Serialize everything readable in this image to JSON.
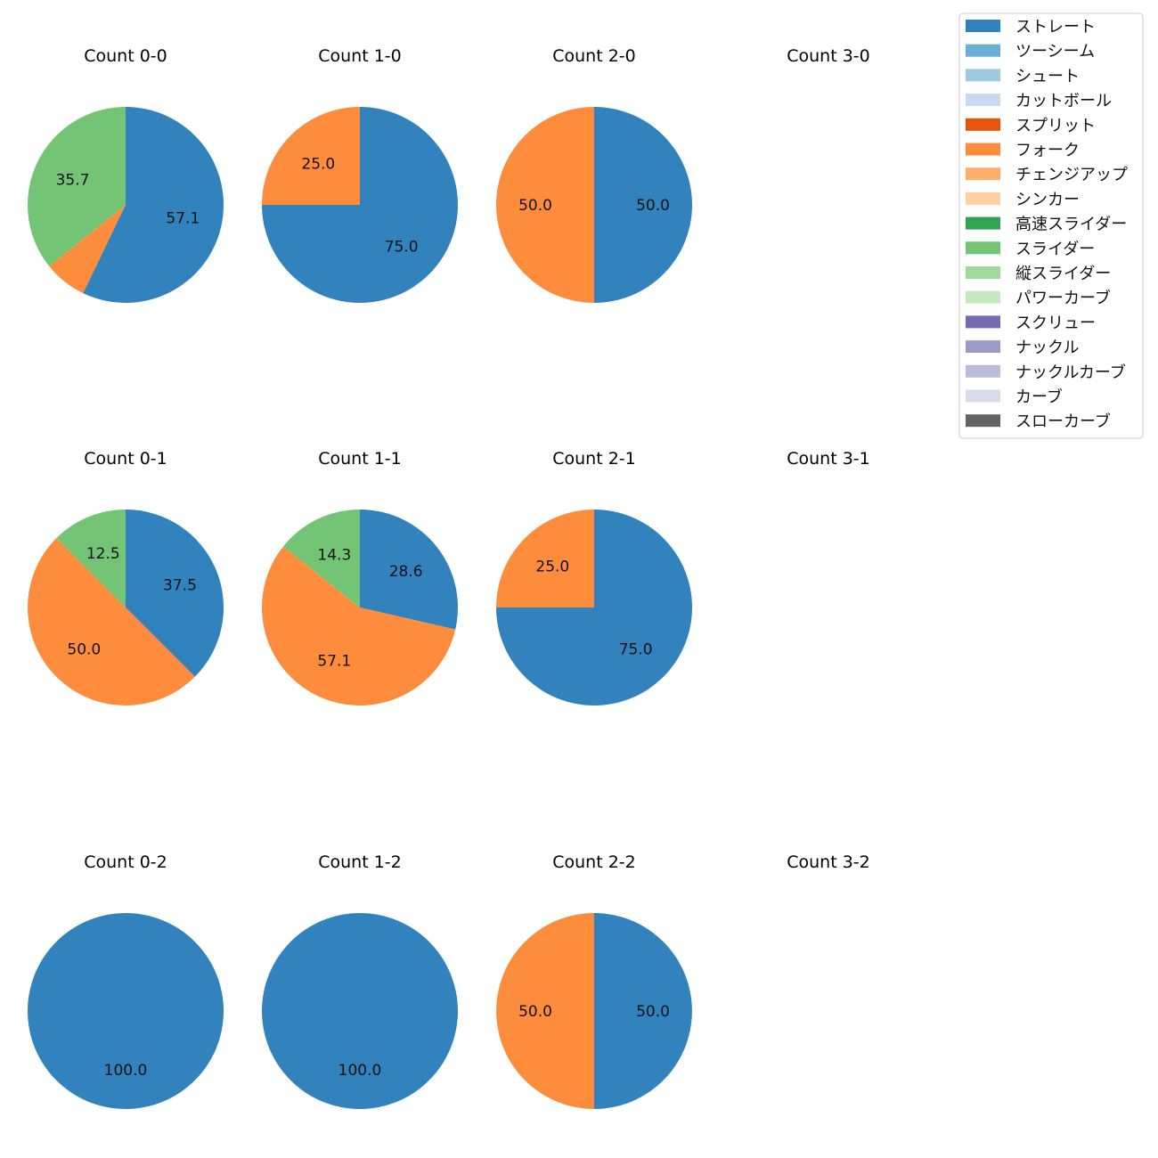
{
  "legend": {
    "items": [
      {
        "label": "ストレート",
        "color": "#3182bd"
      },
      {
        "label": "ツーシーム",
        "color": "#6baed6"
      },
      {
        "label": "シュート",
        "color": "#9ecae1"
      },
      {
        "label": "カットボール",
        "color": "#c6dbef"
      },
      {
        "label": "スプリット",
        "color": "#e6550d"
      },
      {
        "label": "フォーク",
        "color": "#fd8d3c"
      },
      {
        "label": "チェンジアップ",
        "color": "#fdae6b"
      },
      {
        "label": "シンカー",
        "color": "#fdd0a2"
      },
      {
        "label": "高速スライダー",
        "color": "#31a354"
      },
      {
        "label": "スライダー",
        "color": "#74c476"
      },
      {
        "label": "縦スライダー",
        "color": "#a1d99b"
      },
      {
        "label": "パワーカーブ",
        "color": "#c7e9c0"
      },
      {
        "label": "スクリュー",
        "color": "#756bb1"
      },
      {
        "label": "ナックル",
        "color": "#9e9ac8"
      },
      {
        "label": "ナックルカーブ",
        "color": "#bcbddc"
      },
      {
        "label": "カーブ",
        "color": "#dadaeb"
      },
      {
        "label": "スローカーブ",
        "color": "#636363"
      }
    ]
  },
  "chart_data": [
    {
      "type": "pie",
      "title": "Count 0-0",
      "slices": [
        {
          "label": "ストレート",
          "value": 57.1,
          "text": "57.1"
        },
        {
          "label": "フォーク",
          "value": 7.1,
          "text": ""
        },
        {
          "label": "スライダー",
          "value": 35.7,
          "text": "35.7"
        }
      ]
    },
    {
      "type": "pie",
      "title": "Count 1-0",
      "slices": [
        {
          "label": "ストレート",
          "value": 75.0,
          "text": "75.0"
        },
        {
          "label": "フォーク",
          "value": 25.0,
          "text": "25.0"
        }
      ]
    },
    {
      "type": "pie",
      "title": "Count 2-0",
      "slices": [
        {
          "label": "ストレート",
          "value": 50.0,
          "text": "50.0"
        },
        {
          "label": "フォーク",
          "value": 50.0,
          "text": "50.0"
        }
      ]
    },
    {
      "type": "pie",
      "title": "Count 3-0",
      "slices": []
    },
    {
      "type": "pie",
      "title": "Count 0-1",
      "slices": [
        {
          "label": "ストレート",
          "value": 37.5,
          "text": "37.5"
        },
        {
          "label": "フォーク",
          "value": 50.0,
          "text": "50.0"
        },
        {
          "label": "スライダー",
          "value": 12.5,
          "text": "12.5"
        }
      ]
    },
    {
      "type": "pie",
      "title": "Count 1-1",
      "slices": [
        {
          "label": "ストレート",
          "value": 28.6,
          "text": "28.6"
        },
        {
          "label": "フォーク",
          "value": 57.1,
          "text": "57.1"
        },
        {
          "label": "スライダー",
          "value": 14.3,
          "text": "14.3"
        }
      ]
    },
    {
      "type": "pie",
      "title": "Count 2-1",
      "slices": [
        {
          "label": "ストレート",
          "value": 75.0,
          "text": "75.0"
        },
        {
          "label": "フォーク",
          "value": 25.0,
          "text": "25.0"
        }
      ]
    },
    {
      "type": "pie",
      "title": "Count 3-1",
      "slices": []
    },
    {
      "type": "pie",
      "title": "Count 0-2",
      "slices": [
        {
          "label": "ストレート",
          "value": 100.0,
          "text": "100.0"
        }
      ]
    },
    {
      "type": "pie",
      "title": "Count 1-2",
      "slices": [
        {
          "label": "ストレート",
          "value": 100.0,
          "text": "100.0"
        }
      ]
    },
    {
      "type": "pie",
      "title": "Count 2-2",
      "slices": [
        {
          "label": "ストレート",
          "value": 50.0,
          "text": "50.0"
        },
        {
          "label": "フォーク",
          "value": 50.0,
          "text": "50.0"
        }
      ]
    },
    {
      "type": "pie",
      "title": "Count 3-2",
      "slices": []
    }
  ]
}
